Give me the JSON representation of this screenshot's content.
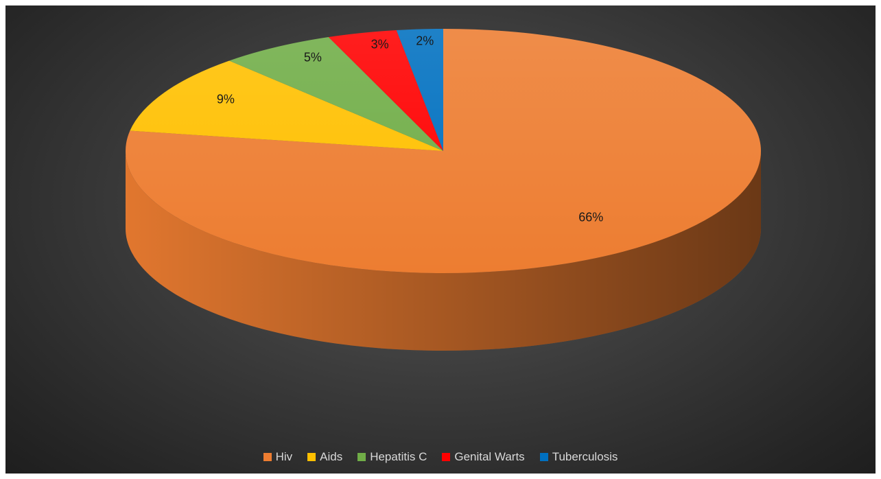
{
  "chart_data": {
    "type": "pie",
    "style": "3d",
    "title": "",
    "legend_position": "bottom",
    "slices": [
      {
        "name": "Hiv",
        "value": 66,
        "label": "66%",
        "color": "#ED7D31"
      },
      {
        "name": "Aids",
        "value": 9,
        "label": "9%",
        "color": "#FFC000"
      },
      {
        "name": "Hepatitis C",
        "value": 5,
        "label": "5%",
        "color": "#70AD47"
      },
      {
        "name": "Genital Warts",
        "value": 3,
        "label": "3%",
        "color": "#FF0000"
      },
      {
        "name": "Tuberculosis",
        "value": 2,
        "label": "2%",
        "color": "#0070C0"
      }
    ]
  }
}
